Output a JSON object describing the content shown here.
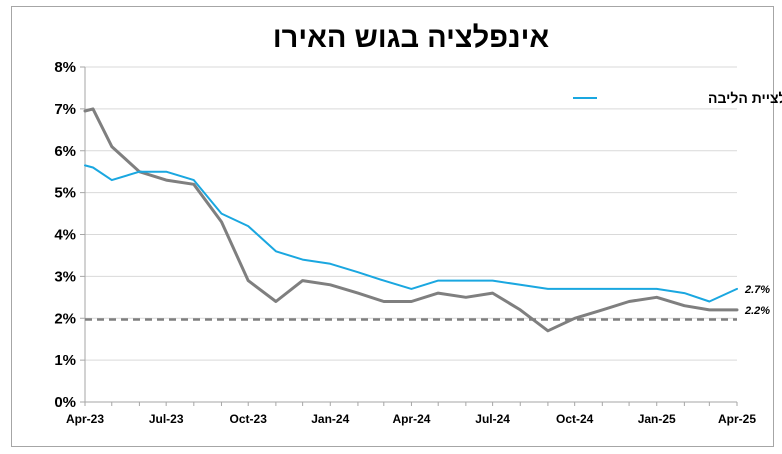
{
  "chart_data": {
    "type": "line",
    "title": "אינפלציה בגוש האירו",
    "xlabel": "",
    "ylabel": "",
    "ylim": [
      0,
      8
    ],
    "y_ticks": [
      "0%",
      "1%",
      "2%",
      "3%",
      "4%",
      "5%",
      "6%",
      "7%",
      "8%"
    ],
    "x_ticks": [
      "Apr-23",
      "Jul-23",
      "Oct-23",
      "Jan-24",
      "Apr-24",
      "Jul-24",
      "Oct-24",
      "Jan-25",
      "Apr-25"
    ],
    "x_months": [
      "2023-04",
      "2023-05",
      "2023-06",
      "2023-07",
      "2023-08",
      "2023-09",
      "2023-10",
      "2023-11",
      "2023-12",
      "2024-01",
      "2024-02",
      "2024-03",
      "2024-04",
      "2024-05",
      "2024-06",
      "2024-07",
      "2024-08",
      "2024-09",
      "2024-10",
      "2024-11",
      "2024-12",
      "2025-01",
      "2025-02",
      "2025-03",
      "2025-04"
    ],
    "grid": true,
    "legend": "top-right",
    "series": [
      {
        "name": "אינפלציית הליבה",
        "color": "#1aa7e0",
        "x": [
          "2023-04-01",
          "2023-04-10",
          "2023-05",
          "2023-06",
          "2023-07",
          "2023-08",
          "2023-09",
          "2023-10",
          "2023-11",
          "2023-12",
          "2024-01",
          "2024-02",
          "2024-03",
          "2024-04",
          "2024-05",
          "2024-06",
          "2024-07",
          "2024-08",
          "2024-09",
          "2024-10",
          "2024-11",
          "2024-12",
          "2025-01",
          "2025-02",
          "2025-03",
          "2025-04"
        ],
        "values": [
          5.65,
          5.6,
          5.3,
          5.5,
          5.5,
          5.3,
          4.5,
          4.2,
          3.6,
          3.4,
          3.3,
          3.1,
          2.9,
          2.7,
          2.9,
          2.9,
          2.9,
          2.8,
          2.7,
          2.7,
          2.7,
          2.7,
          2.7,
          2.6,
          2.4,
          2.7
        ],
        "end_label": "2.7%"
      },
      {
        "name": "",
        "color": "#7f7f7f",
        "x": [
          "2023-04-01",
          "2023-04-10",
          "2023-05",
          "2023-06",
          "2023-07",
          "2023-08",
          "2023-09",
          "2023-10",
          "2023-11",
          "2023-12",
          "2024-01",
          "2024-02",
          "2024-03",
          "2024-04",
          "2024-05",
          "2024-06",
          "2024-07",
          "2024-08",
          "2024-09",
          "2024-10",
          "2024-11",
          "2024-12",
          "2025-01",
          "2025-02",
          "2025-03",
          "2025-04"
        ],
        "values": [
          6.95,
          7.0,
          6.1,
          5.5,
          5.3,
          5.2,
          4.3,
          2.9,
          2.4,
          2.9,
          2.8,
          2.6,
          2.4,
          2.4,
          2.6,
          2.5,
          2.6,
          2.2,
          1.7,
          2.0,
          2.2,
          2.4,
          2.5,
          2.3,
          2.2,
          2.2
        ],
        "end_label": "2.2%"
      }
    ],
    "reference_line": {
      "value": 1.97,
      "color": "#7f7f7f",
      "style": "dashed"
    }
  }
}
